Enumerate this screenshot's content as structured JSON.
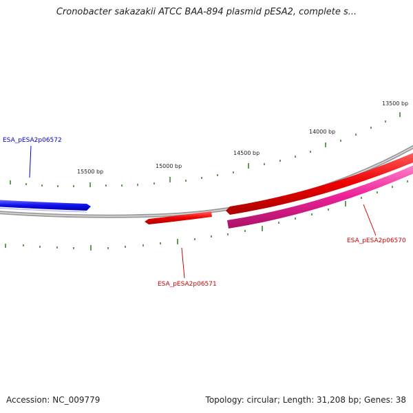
{
  "title": "Cronobacter sakazakii ATCC BAA-894 plasmid pESA2, complete s...",
  "footer": {
    "accession": "Accession: NC_009779",
    "summary": "Topology: circular; Length: 31,208 bp; Genes: 38"
  },
  "tick_labels": [
    "13500 bp",
    "14000 bp",
    "14500 bp",
    "15000 bp",
    "15500 bp"
  ],
  "genes": [
    {
      "name": "ESA_pESA2p06572",
      "color": "#0000cc"
    },
    {
      "name": "ESA_pESA2p06571",
      "color": "#cc0000"
    },
    {
      "name": "ESA_pESA2p06570",
      "color": "#cc0000"
    }
  ],
  "colors": {
    "backbone": "#888888",
    "tick": "#2e7d1f",
    "gene_blue": "#1a1aff",
    "gene_red": "#ee0000",
    "gene_pink": "#ee2299"
  }
}
